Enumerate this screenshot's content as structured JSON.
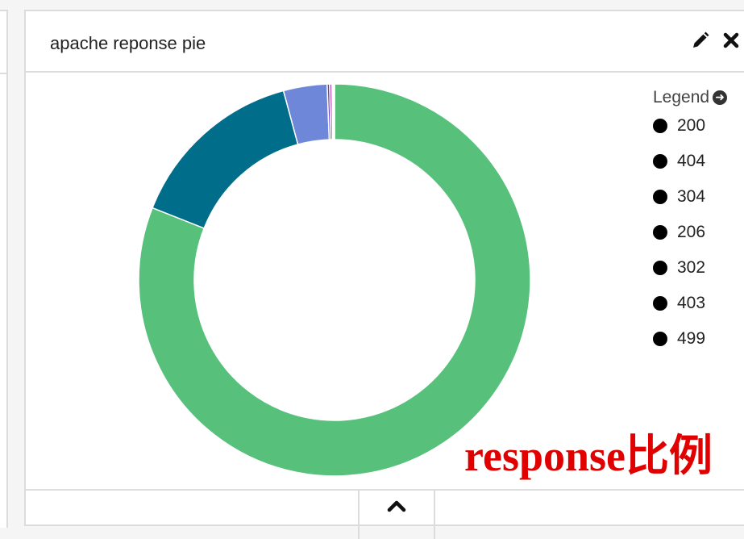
{
  "panel": {
    "title": "apache reponse pie",
    "edit_icon": "pencil-icon",
    "close_icon": "close-icon",
    "collapse_icon": "chevron-up-icon"
  },
  "legend": {
    "title": "Legend",
    "toggle_icon": "arrow-circle-right-icon"
  },
  "annotation": {
    "text": "response比例"
  },
  "chart_data": {
    "type": "pie",
    "donut": true,
    "categories": [
      "200",
      "404",
      "304",
      "206",
      "302",
      "403",
      "499"
    ],
    "values": [
      81.0,
      14.8,
      3.6,
      0.2,
      0.2,
      0.1,
      0.1
    ],
    "colors": [
      "#57c17b",
      "#006e8a",
      "#6f87d8",
      "#663db8",
      "#bc52bc",
      "#9e3533",
      "#daa05d"
    ],
    "legend_position": "right"
  }
}
